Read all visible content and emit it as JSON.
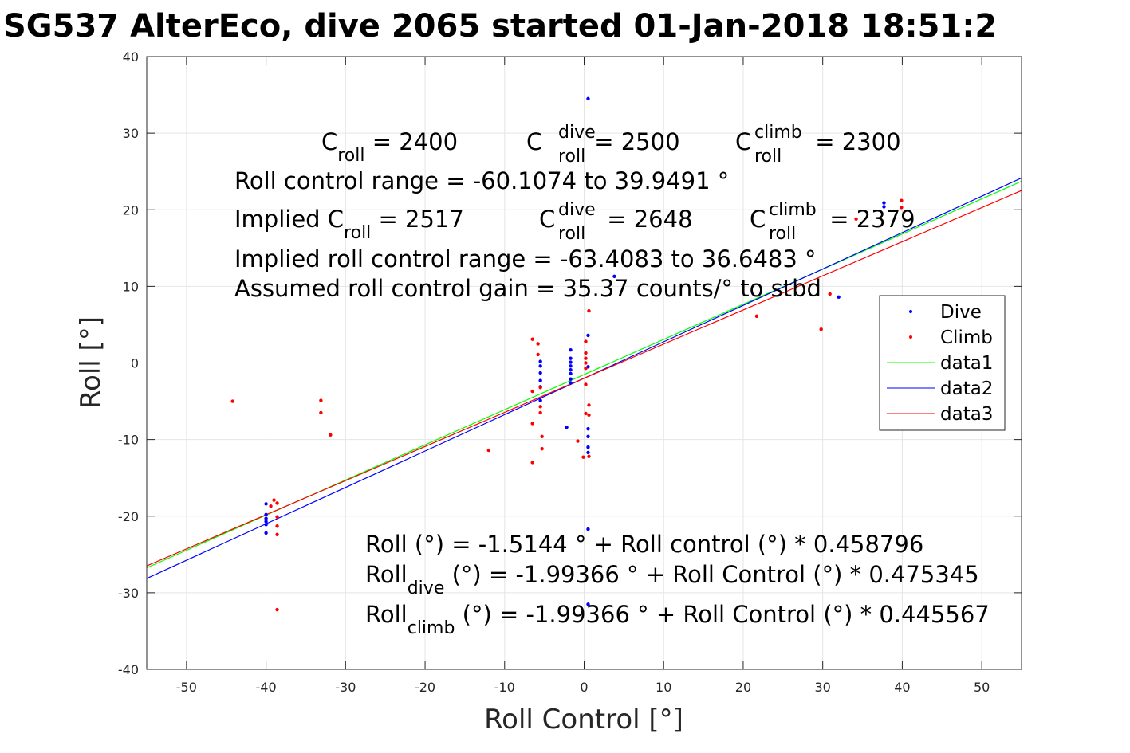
{
  "chart_data": {
    "type": "scatter",
    "title": "SG537 AlterEco, dive 2065 started 01-Jan-2018 18:51:2",
    "xlabel": "Roll Control [°]",
    "ylabel": "Roll [°]",
    "xlim": [
      -55,
      55
    ],
    "ylim": [
      -40,
      40
    ],
    "xticks": [
      -50,
      -40,
      -30,
      -20,
      -10,
      0,
      10,
      20,
      30,
      40,
      50
    ],
    "yticks": [
      -40,
      -30,
      -20,
      -10,
      0,
      10,
      20,
      30,
      40
    ],
    "grid": true,
    "legend": "right",
    "colors": {
      "dive": "#0000ff",
      "climb": "#ff0000",
      "data1": "#00ff00",
      "data2": "#0000ff",
      "data3": "#ff0000"
    },
    "series": [
      {
        "name": "Dive",
        "kind": "scatter",
        "points": [
          [
            -40,
            -18.4
          ],
          [
            -40,
            -19.8
          ],
          [
            -40,
            -20.3
          ],
          [
            -40,
            -20.7
          ],
          [
            -40,
            -21.1
          ],
          [
            -40,
            -22.2
          ],
          [
            -5.5,
            0.2
          ],
          [
            -5.5,
            -0.4
          ],
          [
            -5.5,
            -1.3
          ],
          [
            -5.5,
            -2.3
          ],
          [
            -5.5,
            -3.1
          ],
          [
            -5.5,
            -4.9
          ],
          [
            -1.7,
            1.7
          ],
          [
            -1.7,
            0.6
          ],
          [
            -1.7,
            0.1
          ],
          [
            -1.7,
            -0.4
          ],
          [
            -1.7,
            -0.9
          ],
          [
            -1.7,
            -1.4
          ],
          [
            -1.7,
            -2.1
          ],
          [
            -1.7,
            -2.6
          ],
          [
            -2.2,
            -8.4
          ],
          [
            0.5,
            34.5
          ],
          [
            0.5,
            3.6
          ],
          [
            0.5,
            -0.5
          ],
          [
            0.5,
            -8.6
          ],
          [
            0.5,
            -9.6
          ],
          [
            0.5,
            -11.0
          ],
          [
            0.5,
            -11.7
          ],
          [
            0.5,
            -21.7
          ],
          [
            0.5,
            -31.5
          ],
          [
            3.8,
            11.3
          ],
          [
            37.7,
            20.9
          ],
          [
            37.7,
            20.4
          ],
          [
            32,
            8.6
          ]
        ]
      },
      {
        "name": "Climb",
        "kind": "scatter",
        "points": [
          [
            -44.2,
            -5.0
          ],
          [
            -33.1,
            -4.9
          ],
          [
            -33.1,
            -6.5
          ],
          [
            -31.9,
            -9.4
          ],
          [
            -39.4,
            -18.7
          ],
          [
            -39,
            -17.9
          ],
          [
            -38.6,
            -18.3
          ],
          [
            -38.6,
            -20.1
          ],
          [
            -38.6,
            -21.3
          ],
          [
            -38.6,
            -22.4
          ],
          [
            -38.6,
            -32.2
          ],
          [
            -12,
            -11.4
          ],
          [
            -6.5,
            3.1
          ],
          [
            -6.5,
            -3.7
          ],
          [
            -6.5,
            -7.9
          ],
          [
            -6.5,
            -13.0
          ],
          [
            -5.8,
            2.5
          ],
          [
            -5.8,
            1.1
          ],
          [
            -5.5,
            -3.2
          ],
          [
            -5.5,
            -5.7
          ],
          [
            -5.5,
            -6.5
          ],
          [
            -5.3,
            -9.6
          ],
          [
            -5.3,
            -11.2
          ],
          [
            -0.8,
            -10.2
          ],
          [
            -0.1,
            -12.3
          ],
          [
            0.2,
            2.8
          ],
          [
            0.2,
            1.3
          ],
          [
            0.2,
            0.6
          ],
          [
            0.2,
            0.0
          ],
          [
            0.2,
            -0.7
          ],
          [
            0.2,
            -2.8
          ],
          [
            0.2,
            -6.6
          ],
          [
            0.6,
            6.8
          ],
          [
            0.6,
            -5.5
          ],
          [
            0.6,
            -6.8
          ],
          [
            0.6,
            -12.2
          ],
          [
            21.7,
            6.1
          ],
          [
            29.8,
            4.4
          ],
          [
            30.9,
            9.0
          ],
          [
            34.2,
            18.8
          ],
          [
            39.9,
            21.2
          ],
          [
            39.9,
            20.3
          ]
        ]
      },
      {
        "name": "data1",
        "kind": "line",
        "intercept": -1.5144,
        "slope": 0.458796
      },
      {
        "name": "data2",
        "kind": "line",
        "intercept": -1.99366,
        "slope": 0.475345
      },
      {
        "name": "data3",
        "kind": "line",
        "intercept": -1.99366,
        "slope": 0.445567
      }
    ],
    "annotations": {
      "c_roll": {
        "base": "C",
        "sub": "roll",
        "rest": " = 2400"
      },
      "c_roll_dive": {
        "base": "C",
        "sup": "dive",
        "sub": "roll",
        "rest": " = 2500"
      },
      "c_roll_climb": {
        "base": "C",
        "sup": "climb",
        "sub": "roll",
        "rest": " = 2300"
      },
      "range": "Roll control range = -60.1074 to 39.9491 °",
      "implied_c_roll": {
        "pre": "Implied C",
        "sub": "roll",
        "rest": " = 2517"
      },
      "implied_c_dive": {
        "base": "C",
        "sup": "dive",
        "sub": "roll",
        "rest": " = 2648"
      },
      "implied_c_climb": {
        "base": "C",
        "sup": "climb",
        "sub": "roll",
        "rest": " = 2379"
      },
      "implied_range": "Implied roll control range = -63.4083 to 36.6483 °",
      "gain": "Assumed roll control gain = 35.37 counts/° to stbd",
      "fit": "Roll (°) = -1.5144 ° + Roll control (°) * 0.458796",
      "fit_dive": {
        "base": "Roll",
        "sub": "dive",
        "rest": " (°) = -1.99366 ° + Roll Control (°) * 0.475345"
      },
      "fit_climb": {
        "base": "Roll",
        "sub": "climb",
        "rest": " (°) = -1.99366 ° + Roll Control (°) * 0.445567"
      }
    }
  }
}
